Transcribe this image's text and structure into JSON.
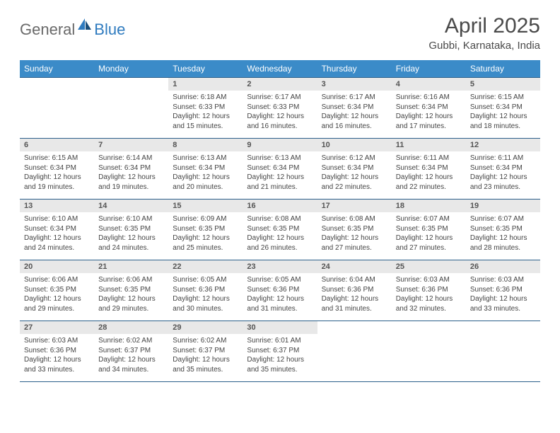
{
  "brand": {
    "left": "General",
    "right": "Blue"
  },
  "title": "April 2025",
  "location": "Gubbi, Karnataka, India",
  "colors": {
    "header_bg": "#3b8bc8",
    "header_text": "#ffffff",
    "daynum_bg": "#e8e8e8",
    "border": "#2b5f8a",
    "brand_gray": "#6a6a6a",
    "brand_blue": "#2f7bbf"
  },
  "weekdays": [
    "Sunday",
    "Monday",
    "Tuesday",
    "Wednesday",
    "Thursday",
    "Friday",
    "Saturday"
  ],
  "weeks": [
    [
      null,
      null,
      {
        "n": "1",
        "sr": "Sunrise: 6:18 AM",
        "ss": "Sunset: 6:33 PM",
        "dl": "Daylight: 12 hours and 15 minutes."
      },
      {
        "n": "2",
        "sr": "Sunrise: 6:17 AM",
        "ss": "Sunset: 6:33 PM",
        "dl": "Daylight: 12 hours and 16 minutes."
      },
      {
        "n": "3",
        "sr": "Sunrise: 6:17 AM",
        "ss": "Sunset: 6:34 PM",
        "dl": "Daylight: 12 hours and 16 minutes."
      },
      {
        "n": "4",
        "sr": "Sunrise: 6:16 AM",
        "ss": "Sunset: 6:34 PM",
        "dl": "Daylight: 12 hours and 17 minutes."
      },
      {
        "n": "5",
        "sr": "Sunrise: 6:15 AM",
        "ss": "Sunset: 6:34 PM",
        "dl": "Daylight: 12 hours and 18 minutes."
      }
    ],
    [
      {
        "n": "6",
        "sr": "Sunrise: 6:15 AM",
        "ss": "Sunset: 6:34 PM",
        "dl": "Daylight: 12 hours and 19 minutes."
      },
      {
        "n": "7",
        "sr": "Sunrise: 6:14 AM",
        "ss": "Sunset: 6:34 PM",
        "dl": "Daylight: 12 hours and 19 minutes."
      },
      {
        "n": "8",
        "sr": "Sunrise: 6:13 AM",
        "ss": "Sunset: 6:34 PM",
        "dl": "Daylight: 12 hours and 20 minutes."
      },
      {
        "n": "9",
        "sr": "Sunrise: 6:13 AM",
        "ss": "Sunset: 6:34 PM",
        "dl": "Daylight: 12 hours and 21 minutes."
      },
      {
        "n": "10",
        "sr": "Sunrise: 6:12 AM",
        "ss": "Sunset: 6:34 PM",
        "dl": "Daylight: 12 hours and 22 minutes."
      },
      {
        "n": "11",
        "sr": "Sunrise: 6:11 AM",
        "ss": "Sunset: 6:34 PM",
        "dl": "Daylight: 12 hours and 22 minutes."
      },
      {
        "n": "12",
        "sr": "Sunrise: 6:11 AM",
        "ss": "Sunset: 6:34 PM",
        "dl": "Daylight: 12 hours and 23 minutes."
      }
    ],
    [
      {
        "n": "13",
        "sr": "Sunrise: 6:10 AM",
        "ss": "Sunset: 6:34 PM",
        "dl": "Daylight: 12 hours and 24 minutes."
      },
      {
        "n": "14",
        "sr": "Sunrise: 6:10 AM",
        "ss": "Sunset: 6:35 PM",
        "dl": "Daylight: 12 hours and 24 minutes."
      },
      {
        "n": "15",
        "sr": "Sunrise: 6:09 AM",
        "ss": "Sunset: 6:35 PM",
        "dl": "Daylight: 12 hours and 25 minutes."
      },
      {
        "n": "16",
        "sr": "Sunrise: 6:08 AM",
        "ss": "Sunset: 6:35 PM",
        "dl": "Daylight: 12 hours and 26 minutes."
      },
      {
        "n": "17",
        "sr": "Sunrise: 6:08 AM",
        "ss": "Sunset: 6:35 PM",
        "dl": "Daylight: 12 hours and 27 minutes."
      },
      {
        "n": "18",
        "sr": "Sunrise: 6:07 AM",
        "ss": "Sunset: 6:35 PM",
        "dl": "Daylight: 12 hours and 27 minutes."
      },
      {
        "n": "19",
        "sr": "Sunrise: 6:07 AM",
        "ss": "Sunset: 6:35 PM",
        "dl": "Daylight: 12 hours and 28 minutes."
      }
    ],
    [
      {
        "n": "20",
        "sr": "Sunrise: 6:06 AM",
        "ss": "Sunset: 6:35 PM",
        "dl": "Daylight: 12 hours and 29 minutes."
      },
      {
        "n": "21",
        "sr": "Sunrise: 6:06 AM",
        "ss": "Sunset: 6:35 PM",
        "dl": "Daylight: 12 hours and 29 minutes."
      },
      {
        "n": "22",
        "sr": "Sunrise: 6:05 AM",
        "ss": "Sunset: 6:36 PM",
        "dl": "Daylight: 12 hours and 30 minutes."
      },
      {
        "n": "23",
        "sr": "Sunrise: 6:05 AM",
        "ss": "Sunset: 6:36 PM",
        "dl": "Daylight: 12 hours and 31 minutes."
      },
      {
        "n": "24",
        "sr": "Sunrise: 6:04 AM",
        "ss": "Sunset: 6:36 PM",
        "dl": "Daylight: 12 hours and 31 minutes."
      },
      {
        "n": "25",
        "sr": "Sunrise: 6:03 AM",
        "ss": "Sunset: 6:36 PM",
        "dl": "Daylight: 12 hours and 32 minutes."
      },
      {
        "n": "26",
        "sr": "Sunrise: 6:03 AM",
        "ss": "Sunset: 6:36 PM",
        "dl": "Daylight: 12 hours and 33 minutes."
      }
    ],
    [
      {
        "n": "27",
        "sr": "Sunrise: 6:03 AM",
        "ss": "Sunset: 6:36 PM",
        "dl": "Daylight: 12 hours and 33 minutes."
      },
      {
        "n": "28",
        "sr": "Sunrise: 6:02 AM",
        "ss": "Sunset: 6:37 PM",
        "dl": "Daylight: 12 hours and 34 minutes."
      },
      {
        "n": "29",
        "sr": "Sunrise: 6:02 AM",
        "ss": "Sunset: 6:37 PM",
        "dl": "Daylight: 12 hours and 35 minutes."
      },
      {
        "n": "30",
        "sr": "Sunrise: 6:01 AM",
        "ss": "Sunset: 6:37 PM",
        "dl": "Daylight: 12 hours and 35 minutes."
      },
      null,
      null,
      null
    ]
  ]
}
